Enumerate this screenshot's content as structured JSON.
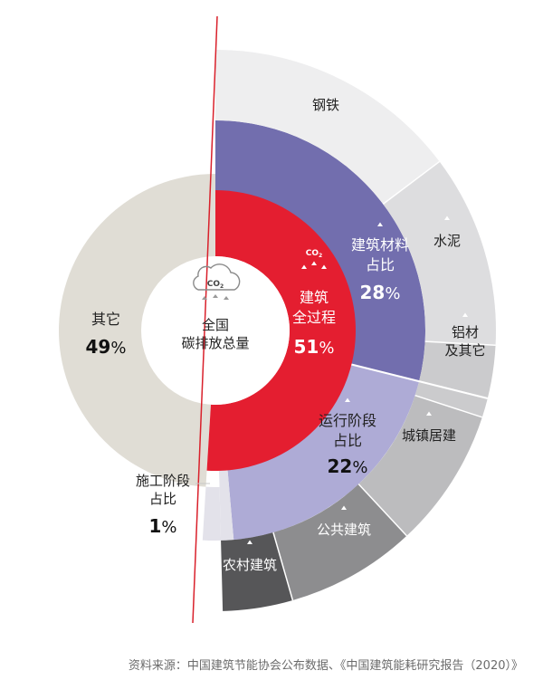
{
  "chart_data": {
    "type": "pie",
    "center_label": [
      "全国",
      "碳排放总量"
    ],
    "co2_label": "CO",
    "co2_sub": "2",
    "colors": {
      "other": "#e0ddd5",
      "building": "#e41e30",
      "materials": "#726eae",
      "operation": "#aeabd6",
      "construction": "#e3e2ea",
      "steel": "#eeeeef",
      "cement": "#dddddf",
      "aluminum": "#cbcbcd",
      "urban": "#bcbcbe",
      "public": "#8d8d8f",
      "rural": "#565658",
      "redline": "#d9202b"
    },
    "inner": {
      "slices": [
        {
          "key": "building",
          "name_lines": [
            "建筑",
            "全过程"
          ],
          "value": 51,
          "pct": "%"
        },
        {
          "key": "other",
          "name_lines": [
            "其它"
          ],
          "value": 49,
          "pct": "%"
        }
      ]
    },
    "middle": {
      "slices": [
        {
          "key": "materials",
          "name_lines": [
            "建筑材料",
            "占比"
          ],
          "value": 28,
          "pct": "%"
        },
        {
          "key": "operation",
          "name_lines": [
            "运行阶段",
            "占比"
          ],
          "value": 22,
          "pct": "%"
        },
        {
          "key": "construction",
          "name_lines": [
            "施工阶段",
            "占比"
          ],
          "value": 1,
          "pct": "%"
        }
      ]
    },
    "outer": {
      "slices": [
        {
          "key": "steel",
          "label": "钢铁"
        },
        {
          "key": "cement",
          "label": "水泥"
        },
        {
          "key": "aluminum",
          "label_lines": [
            "铝材",
            "及其它"
          ]
        },
        {
          "key": "urban",
          "label": "城镇居建"
        },
        {
          "key": "public",
          "label": "公共建筑"
        },
        {
          "key": "rural",
          "label": "农村建筑"
        }
      ]
    }
  },
  "source": "资料来源：中国建筑节能协会公布数据、《中国建筑能耗研究报告（2020）》"
}
